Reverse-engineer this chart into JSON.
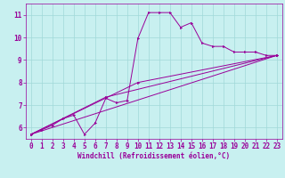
{
  "xlabel": "Windchill (Refroidissement éolien,°C)",
  "ylabel": "",
  "xlim": [
    -0.5,
    23.5
  ],
  "ylim": [
    5.5,
    11.5
  ],
  "xticks": [
    0,
    1,
    2,
    3,
    4,
    5,
    6,
    7,
    8,
    9,
    10,
    11,
    12,
    13,
    14,
    15,
    16,
    17,
    18,
    19,
    20,
    21,
    22,
    23
  ],
  "yticks": [
    6,
    7,
    8,
    9,
    10,
    11
  ],
  "bg_color": "#c8f0f0",
  "line_color": "#990099",
  "grid_color": "#a0d8d8",
  "line1_x": [
    0,
    1,
    2,
    3,
    4,
    5,
    6,
    7,
    8,
    9,
    10,
    11,
    12,
    13,
    14,
    15,
    16,
    17,
    18,
    19,
    20,
    21,
    22,
    23
  ],
  "line1_y": [
    5.7,
    5.9,
    6.1,
    6.4,
    6.55,
    5.7,
    6.2,
    7.3,
    7.1,
    7.2,
    9.95,
    11.1,
    11.1,
    11.1,
    10.45,
    10.65,
    9.75,
    9.6,
    9.6,
    9.35,
    9.35,
    9.35,
    9.2,
    9.2
  ],
  "line2_x": [
    0,
    23
  ],
  "line2_y": [
    5.7,
    9.2
  ],
  "line3_x": [
    0,
    7,
    23
  ],
  "line3_y": [
    5.7,
    7.35,
    9.2
  ],
  "line4_x": [
    0,
    10,
    23
  ],
  "line4_y": [
    5.7,
    8.0,
    9.2
  ],
  "tick_fontsize": 5.5,
  "xlabel_fontsize": 5.5,
  "line_width": 0.7,
  "marker_size": 1.8
}
